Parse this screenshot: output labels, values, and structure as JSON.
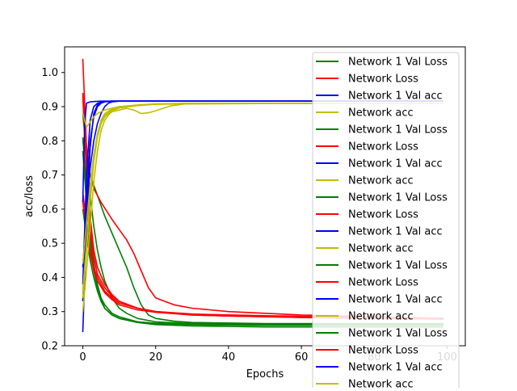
{
  "chart_data": {
    "type": "line",
    "xlabel": "Epochs",
    "ylabel": "acc/loss",
    "xlim": [
      -5,
      105
    ],
    "ylim": [
      0.2,
      1.075
    ],
    "xticks": [
      0,
      20,
      40,
      60,
      80,
      100
    ],
    "yticks": [
      0.2,
      0.3,
      0.4,
      0.5,
      0.6,
      0.7,
      0.8,
      0.9,
      1.0
    ],
    "xtick_labels": [
      "0",
      "20",
      "40",
      "60",
      "80",
      "100"
    ],
    "ytick_labels": [
      "0.2",
      "0.3",
      "0.4",
      "0.5",
      "0.6",
      "0.7",
      "0.8",
      "0.9",
      "1.0"
    ],
    "grid": false,
    "legend_position": "top-right",
    "colors": {
      "val_loss": "#008000",
      "loss": "#ff0000",
      "val_acc": "#0000ff",
      "acc": "#bfbf00"
    },
    "legend": [
      {
        "label": "Network 1 Val Loss",
        "color": "#008000"
      },
      {
        "label": "Network Loss",
        "color": "#ff0000"
      },
      {
        "label": "Network 1 Val acc",
        "color": "#0000ff"
      },
      {
        "label": "Network acc",
        "color": "#bfbf00"
      },
      {
        "label": "Network 1 Val Loss",
        "color": "#008000"
      },
      {
        "label": "Network Loss",
        "color": "#ff0000"
      },
      {
        "label": "Network 1 Val acc",
        "color": "#0000ff"
      },
      {
        "label": "Network acc",
        "color": "#bfbf00"
      },
      {
        "label": "Network 1 Val Loss",
        "color": "#008000"
      },
      {
        "label": "Network Loss",
        "color": "#ff0000"
      },
      {
        "label": "Network 1 Val acc",
        "color": "#0000ff"
      },
      {
        "label": "Network acc",
        "color": "#bfbf00"
      },
      {
        "label": "Network 1 Val Loss",
        "color": "#008000"
      },
      {
        "label": "Network Loss",
        "color": "#ff0000"
      },
      {
        "label": "Network 1 Val acc",
        "color": "#0000ff"
      },
      {
        "label": "Network acc",
        "color": "#bfbf00"
      },
      {
        "label": "Network 1 Val Loss",
        "color": "#008000"
      },
      {
        "label": "Network Loss",
        "color": "#ff0000"
      },
      {
        "label": "Network 1 Val acc",
        "color": "#0000ff"
      },
      {
        "label": "Network acc",
        "color": "#bfbf00"
      }
    ],
    "series": [
      {
        "color": "#008000",
        "x": [
          0,
          1,
          2,
          3,
          4,
          5,
          6,
          8,
          10,
          15,
          20,
          30,
          50,
          70,
          99
        ],
        "y": [
          0.81,
          0.66,
          0.53,
          0.44,
          0.38,
          0.34,
          0.32,
          0.295,
          0.285,
          0.27,
          0.265,
          0.262,
          0.26,
          0.26,
          0.26
        ]
      },
      {
        "color": "#008000",
        "x": [
          0,
          1,
          2,
          3,
          4,
          5,
          6,
          8,
          10,
          15,
          20,
          30,
          50,
          70,
          99
        ],
        "y": [
          0.77,
          0.62,
          0.5,
          0.42,
          0.37,
          0.335,
          0.31,
          0.29,
          0.28,
          0.268,
          0.262,
          0.258,
          0.255,
          0.255,
          0.255
        ]
      },
      {
        "color": "#008000",
        "x": [
          0,
          1,
          2,
          3,
          4,
          5,
          6,
          8,
          10,
          12,
          15,
          20,
          30,
          50,
          70,
          99
        ],
        "y": [
          0.88,
          0.76,
          0.64,
          0.55,
          0.48,
          0.43,
          0.39,
          0.34,
          0.31,
          0.295,
          0.28,
          0.27,
          0.265,
          0.262,
          0.262,
          0.262
        ]
      },
      {
        "color": "#008000",
        "x": [
          0,
          2,
          4,
          6,
          8,
          10,
          12,
          14,
          16,
          18,
          20,
          25,
          30,
          50,
          70,
          99
        ],
        "y": [
          0.8,
          0.7,
          0.64,
          0.58,
          0.53,
          0.48,
          0.43,
          0.37,
          0.32,
          0.29,
          0.28,
          0.272,
          0.268,
          0.265,
          0.265,
          0.265
        ]
      },
      {
        "color": "#008000",
        "x": [
          0,
          1,
          2,
          3,
          4,
          5,
          6,
          8,
          10,
          15,
          20,
          30,
          50,
          70,
          99
        ],
        "y": [
          0.6,
          0.52,
          0.45,
          0.4,
          0.36,
          0.33,
          0.31,
          0.29,
          0.28,
          0.27,
          0.266,
          0.262,
          0.26,
          0.26,
          0.26
        ]
      },
      {
        "color": "#ff0000",
        "x": [
          0,
          1,
          2,
          3,
          4,
          6,
          8,
          10,
          15,
          20,
          30,
          40,
          50,
          60,
          80,
          99
        ],
        "y": [
          1.04,
          0.78,
          0.58,
          0.48,
          0.43,
          0.38,
          0.35,
          0.33,
          0.31,
          0.3,
          0.29,
          0.287,
          0.285,
          0.283,
          0.28,
          0.278
        ]
      },
      {
        "color": "#ff0000",
        "x": [
          0,
          1,
          2,
          3,
          4,
          6,
          8,
          10,
          15,
          20,
          30,
          40,
          50,
          60,
          80,
          99
        ],
        "y": [
          0.93,
          0.7,
          0.54,
          0.46,
          0.41,
          0.37,
          0.345,
          0.33,
          0.31,
          0.3,
          0.292,
          0.29,
          0.288,
          0.286,
          0.283,
          0.28
        ]
      },
      {
        "color": "#ff0000",
        "x": [
          0,
          1,
          2,
          3,
          5,
          8,
          10,
          12,
          14,
          16,
          18,
          20,
          25,
          30,
          40,
          50,
          60,
          80,
          99
        ],
        "y": [
          0.94,
          0.78,
          0.7,
          0.66,
          0.62,
          0.57,
          0.54,
          0.51,
          0.47,
          0.42,
          0.37,
          0.34,
          0.32,
          0.31,
          0.3,
          0.295,
          0.29,
          0.285,
          0.28
        ]
      },
      {
        "color": "#ff0000",
        "x": [
          0,
          1,
          2,
          3,
          4,
          6,
          8,
          10,
          15,
          20,
          30,
          40,
          50,
          60,
          80,
          99
        ],
        "y": [
          0.65,
          0.56,
          0.48,
          0.43,
          0.4,
          0.36,
          0.34,
          0.325,
          0.31,
          0.3,
          0.293,
          0.29,
          0.287,
          0.285,
          0.282,
          0.28
        ]
      },
      {
        "color": "#ff0000",
        "x": [
          0,
          1,
          2,
          3,
          4,
          6,
          8,
          10,
          15,
          20,
          30,
          40,
          50,
          60,
          80,
          99
        ],
        "y": [
          0.62,
          0.54,
          0.47,
          0.42,
          0.39,
          0.355,
          0.335,
          0.32,
          0.305,
          0.298,
          0.29,
          0.287,
          0.285,
          0.283,
          0.28,
          0.278
        ]
      },
      {
        "color": "#0000ff",
        "x": [
          0,
          1,
          2,
          3,
          4,
          5,
          6,
          8,
          10,
          20,
          50,
          99
        ],
        "y": [
          0.24,
          0.55,
          0.78,
          0.88,
          0.905,
          0.912,
          0.915,
          0.916,
          0.916,
          0.916,
          0.916,
          0.916
        ]
      },
      {
        "color": "#0000ff",
        "x": [
          0,
          1,
          2,
          3,
          4,
          5,
          6,
          8,
          10,
          20,
          50,
          99
        ],
        "y": [
          0.38,
          0.7,
          0.86,
          0.9,
          0.91,
          0.913,
          0.915,
          0.916,
          0.916,
          0.916,
          0.916,
          0.916
        ]
      },
      {
        "color": "#0000ff",
        "x": [
          0,
          1,
          2,
          3,
          4,
          5,
          6,
          7,
          8,
          10,
          20,
          50,
          99
        ],
        "y": [
          0.43,
          0.6,
          0.72,
          0.8,
          0.85,
          0.88,
          0.9,
          0.91,
          0.914,
          0.916,
          0.916,
          0.916,
          0.916
        ]
      },
      {
        "color": "#0000ff",
        "x": [
          0,
          0.5,
          1,
          2,
          3,
          5,
          10,
          20,
          50,
          99
        ],
        "y": [
          0.62,
          0.85,
          0.91,
          0.914,
          0.915,
          0.916,
          0.916,
          0.916,
          0.916,
          0.916
        ]
      },
      {
        "color": "#0000ff",
        "x": [
          0,
          1,
          2,
          3,
          4,
          5,
          6,
          8,
          10,
          20,
          50,
          99
        ],
        "y": [
          0.33,
          0.62,
          0.8,
          0.87,
          0.9,
          0.91,
          0.914,
          0.916,
          0.916,
          0.916,
          0.916,
          0.916
        ]
      },
      {
        "color": "#bfbf00",
        "x": [
          0,
          1,
          2,
          3,
          4,
          5,
          6,
          7,
          8,
          10,
          12,
          14,
          16,
          18,
          20,
          22,
          24,
          26,
          28,
          30,
          40,
          60,
          99
        ],
        "y": [
          0.3,
          0.42,
          0.55,
          0.68,
          0.77,
          0.83,
          0.86,
          0.875,
          0.885,
          0.89,
          0.895,
          0.89,
          0.88,
          0.882,
          0.888,
          0.895,
          0.902,
          0.905,
          0.908,
          0.91,
          0.91,
          0.91,
          0.91
        ]
      },
      {
        "color": "#bfbf00",
        "x": [
          0,
          1,
          2,
          3,
          4,
          5,
          6,
          8,
          10,
          15,
          20,
          30,
          60,
          99
        ],
        "y": [
          0.34,
          0.48,
          0.62,
          0.74,
          0.82,
          0.86,
          0.88,
          0.893,
          0.9,
          0.905,
          0.908,
          0.91,
          0.91,
          0.91
        ]
      },
      {
        "color": "#bfbf00",
        "x": [
          0,
          1,
          2,
          3,
          4,
          5,
          6,
          8,
          10,
          15,
          20,
          30,
          60,
          99
        ],
        "y": [
          0.44,
          0.56,
          0.67,
          0.76,
          0.82,
          0.855,
          0.875,
          0.89,
          0.897,
          0.903,
          0.907,
          0.91,
          0.91,
          0.91
        ]
      },
      {
        "color": "#bfbf00",
        "x": [
          0,
          0.5,
          1,
          2,
          3,
          4,
          6,
          10,
          20,
          60,
          99
        ],
        "y": [
          0.88,
          0.86,
          0.84,
          0.855,
          0.87,
          0.88,
          0.89,
          0.9,
          0.907,
          0.91,
          0.91
        ]
      },
      {
        "color": "#bfbf00",
        "x": [
          0,
          1,
          2,
          3,
          4,
          5,
          6,
          8,
          10,
          15,
          20,
          30,
          60,
          99
        ],
        "y": [
          0.36,
          0.5,
          0.63,
          0.74,
          0.81,
          0.85,
          0.87,
          0.888,
          0.896,
          0.903,
          0.907,
          0.91,
          0.91,
          0.91
        ]
      }
    ]
  }
}
